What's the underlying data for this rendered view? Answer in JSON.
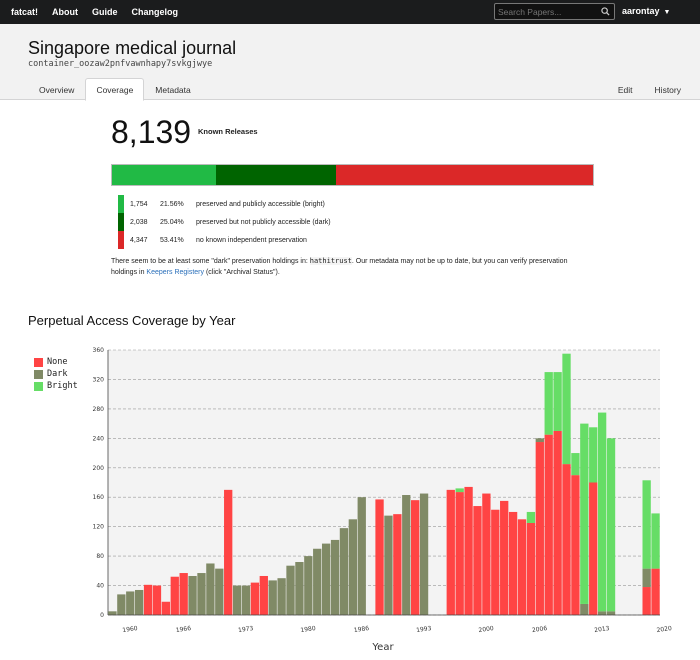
{
  "nav": {
    "brand": "fatcat!",
    "items": [
      "About",
      "Guide",
      "Changelog"
    ],
    "search_placeholder": "Search Papers...",
    "user": "aarontay"
  },
  "header": {
    "title": "Singapore medical journal",
    "ident": "container_oozaw2pnfvawnhapy7svkgjwye",
    "tabs": [
      "Overview",
      "Coverage",
      "Metadata"
    ],
    "active_tab": "Coverage",
    "right_tabs": [
      "Edit",
      "History"
    ]
  },
  "summary": {
    "count": "8,139",
    "count_label": "Known Releases",
    "rows": [
      {
        "count": "1,754",
        "pct": "21.56%",
        "label": "preserved and publicly accessible (bright)",
        "color": "#21ba45"
      },
      {
        "count": "2,038",
        "pct": "25.04%",
        "label": "preserved but not publicly accessible (dark)",
        "color": "#006400"
      },
      {
        "count": "4,347",
        "pct": "53.41%",
        "label": "no known independent preservation",
        "color": "#db2828"
      }
    ],
    "fractions": [
      0.2156,
      0.2504,
      0.5341
    ],
    "note_pre": "There seem to be at least some \"dark\" preservation holdings in: ",
    "note_code": "hathitrust",
    "note_mid": ". Our metadata may not be up to date, but you can verify preservation holdings in ",
    "note_link": "Keepers Registery",
    "note_post": " (click \"Archival Status\")."
  },
  "chart_title": "Perpetual Access Coverage by Year",
  "chart_data": {
    "type": "bar",
    "stacked": true,
    "xlabel": "Year",
    "ylim": [
      0,
      360
    ],
    "yticks": [
      0,
      40,
      80,
      120,
      160,
      200,
      240,
      280,
      320,
      360
    ],
    "xticks": [
      1960,
      1966,
      1973,
      1980,
      1986,
      1993,
      2000,
      2006,
      2013,
      2020
    ],
    "legend": "top-left",
    "categories": [
      1958,
      1959,
      1960,
      1961,
      1962,
      1963,
      1964,
      1965,
      1966,
      1967,
      1968,
      1969,
      1970,
      1971,
      1972,
      1973,
      1974,
      1975,
      1976,
      1977,
      1978,
      1979,
      1980,
      1981,
      1982,
      1983,
      1984,
      1985,
      1986,
      1987,
      1988,
      1989,
      1990,
      1991,
      1992,
      1993,
      1994,
      1995,
      1996,
      1997,
      1998,
      1999,
      2000,
      2001,
      2002,
      2003,
      2004,
      2005,
      2006,
      2007,
      2008,
      2009,
      2010,
      2011,
      2012,
      2013,
      2014,
      2015,
      2016,
      2017,
      2018,
      2019
    ],
    "series": [
      {
        "name": "None",
        "color": "#ff4444",
        "values": [
          0,
          0,
          0,
          0,
          41,
          40,
          18,
          52,
          57,
          0,
          0,
          0,
          0,
          170,
          0,
          0,
          44,
          53,
          0,
          0,
          0,
          0,
          0,
          0,
          0,
          0,
          0,
          0,
          0,
          0,
          157,
          0,
          137,
          0,
          156,
          0,
          0,
          0,
          170,
          167,
          174,
          148,
          165,
          143,
          155,
          140,
          130,
          125,
          235,
          245,
          250,
          205,
          190,
          0,
          180,
          0,
          0,
          0,
          0,
          0,
          38,
          63
        ]
      },
      {
        "name": "Dark",
        "color": "#808a66",
        "values": [
          5,
          28,
          32,
          34,
          0,
          0,
          0,
          0,
          0,
          53,
          57,
          70,
          63,
          0,
          40,
          40,
          0,
          0,
          47,
          50,
          67,
          72,
          80,
          90,
          97,
          102,
          118,
          130,
          160,
          0,
          0,
          135,
          0,
          163,
          0,
          165,
          0,
          0,
          0,
          0,
          0,
          0,
          0,
          0,
          0,
          0,
          0,
          0,
          5,
          0,
          0,
          0,
          0,
          15,
          0,
          5,
          5,
          0,
          0,
          0,
          25,
          0
        ]
      },
      {
        "name": "Bright",
        "color": "#66dd66",
        "values": [
          0,
          0,
          0,
          0,
          0,
          0,
          0,
          0,
          0,
          0,
          0,
          0,
          0,
          0,
          0,
          0,
          0,
          0,
          0,
          0,
          0,
          0,
          0,
          0,
          0,
          0,
          0,
          0,
          0,
          0,
          0,
          0,
          0,
          0,
          0,
          0,
          0,
          0,
          0,
          5,
          0,
          0,
          0,
          0,
          0,
          0,
          0,
          15,
          0,
          85,
          80,
          150,
          30,
          245,
          75,
          270,
          235,
          0,
          0,
          0,
          120,
          75
        ]
      }
    ]
  },
  "chart_legend": [
    "None",
    "Dark",
    "Bright"
  ]
}
